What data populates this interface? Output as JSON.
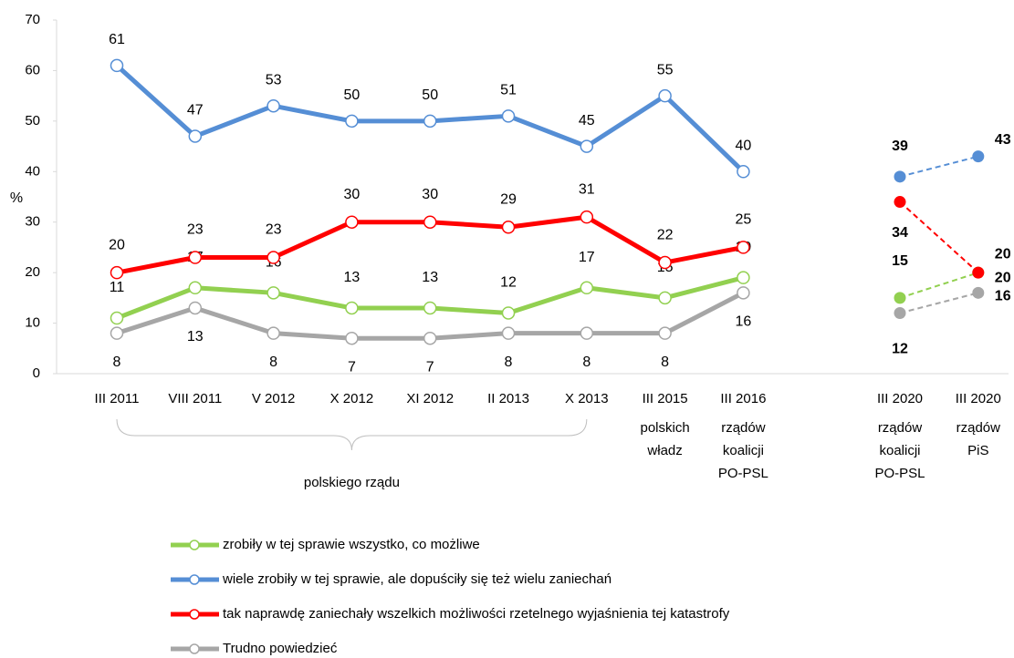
{
  "chart_data": {
    "type": "line",
    "ylabel": "%",
    "categories": [
      "III 2011",
      "VIII 2011",
      "V 2012",
      "X 2012",
      "XI 2012",
      "II 2013",
      "X 2013",
      "III 2015",
      "III 2016",
      null,
      "III 2020",
      "III 2020"
    ],
    "groups": [
      {
        "first": 0,
        "last": 6,
        "lines": [
          "polskiego rządu"
        ]
      },
      {
        "first": 7,
        "last": 7,
        "lines": [
          "polskich",
          "władz"
        ]
      },
      {
        "first": 8,
        "last": 8,
        "lines": [
          "rządów",
          "koalicji",
          "PO-PSL"
        ]
      },
      {
        "first": 10,
        "last": 10,
        "lines": [
          "rządów",
          "koalicji",
          "PO-PSL"
        ]
      },
      {
        "first": 11,
        "last": 11,
        "lines": [
          "rządów",
          "PiS"
        ]
      }
    ],
    "series": [
      {
        "name": "zrobiły w tej sprawie wszystko, co możliwe",
        "color": "#92d050",
        "values": [
          11,
          17,
          16,
          13,
          13,
          12,
          17,
          15,
          19,
          null,
          15,
          20
        ]
      },
      {
        "name": "wiele zrobiły w tej sprawie, ale dopuściły się też wielu zaniechań",
        "color": "#558ed5",
        "values": [
          61,
          47,
          53,
          50,
          50,
          51,
          45,
          55,
          40,
          null,
          39,
          43
        ]
      },
      {
        "name": "tak naprawdę zaniechały wszelkich możliwości rzetelnego wyjaśnienia tej katastrofy",
        "color": "#ff0000",
        "values": [
          20,
          23,
          23,
          30,
          30,
          29,
          31,
          22,
          25,
          null,
          34,
          20
        ]
      },
      {
        "name": "Trudno powiedzieć",
        "color": "#a6a6a6",
        "values": [
          8,
          13,
          8,
          7,
          7,
          8,
          8,
          8,
          16,
          null,
          12,
          16
        ]
      }
    ],
    "ylim": [
      0,
      70
    ],
    "yticks": [
      0,
      10,
      20,
      30,
      40,
      50,
      60,
      70
    ],
    "grid": false,
    "legend": "bottom"
  }
}
